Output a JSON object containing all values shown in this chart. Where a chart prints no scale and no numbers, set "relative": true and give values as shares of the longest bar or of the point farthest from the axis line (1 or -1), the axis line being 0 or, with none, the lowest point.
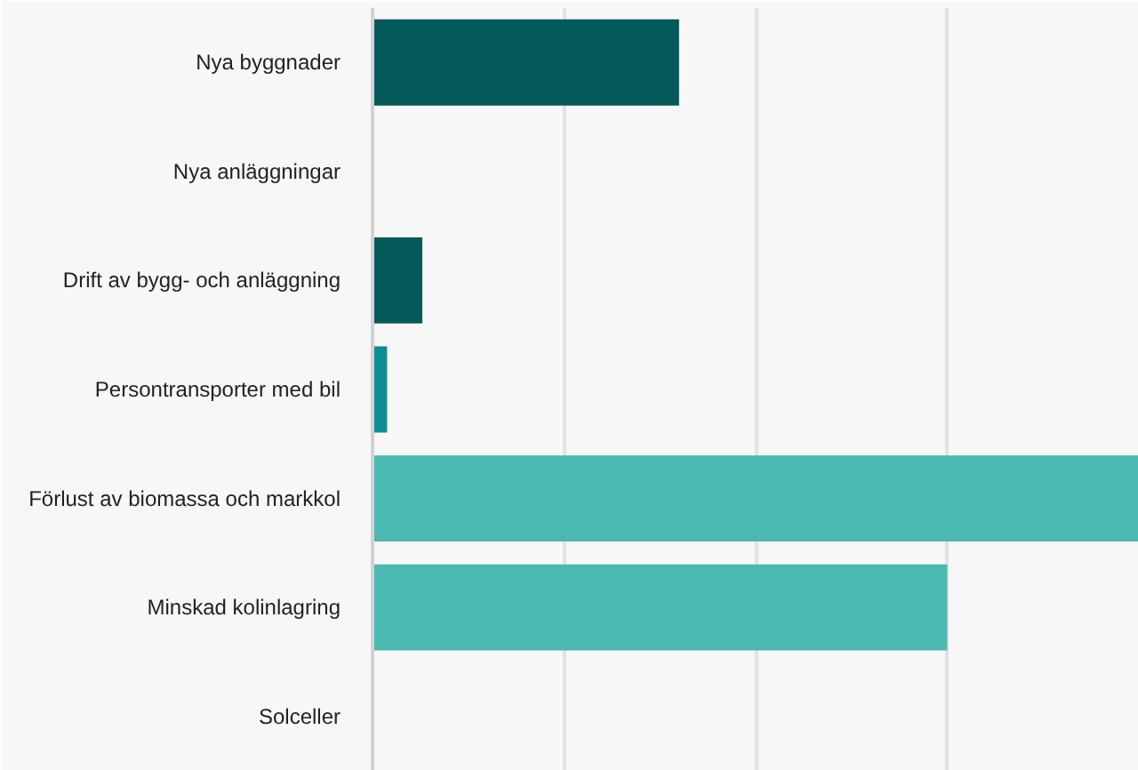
{
  "chart_data": {
    "type": "bar",
    "orientation": "horizontal",
    "relative": true,
    "categories": [
      "Nya byggnader",
      "Nya anläggningar",
      "Drift av bygg- och anläggning",
      "Persontransporter med bil",
      "Förlust av biomassa och markkol",
      "Minskad kolinlagring",
      "Solceller"
    ],
    "values": [
      0.4,
      0,
      0.065,
      0.019,
      1,
      0.75,
      0
    ],
    "colors": [
      "#045a5a",
      null,
      "#045a5a",
      "#0c8e96",
      "#4ab9b2",
      "#4ab9b2",
      null
    ],
    "grid": "x"
  }
}
